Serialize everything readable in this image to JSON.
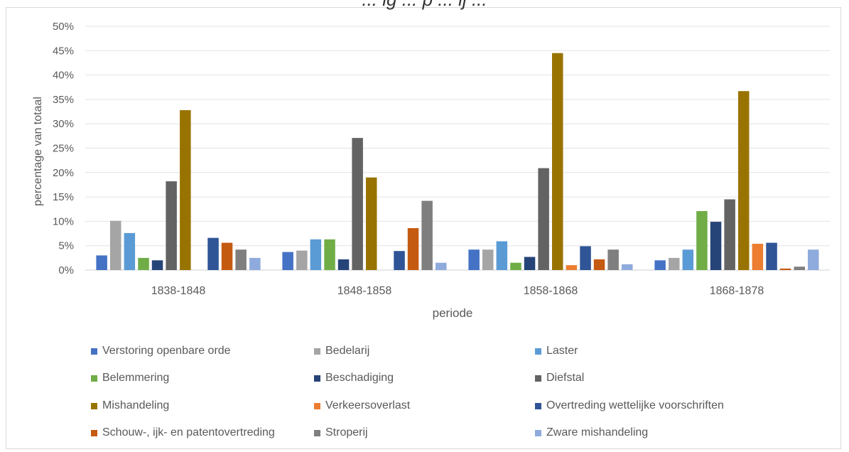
{
  "chart_data": {
    "type": "bar",
    "title": "... ig ... p ... ij ...",
    "xlabel": "periode",
    "ylabel": "percentage van totaal",
    "ylim": [
      0,
      50
    ],
    "yticks": [
      "0%",
      "5%",
      "10%",
      "15%",
      "20%",
      "25%",
      "30%",
      "35%",
      "40%",
      "45%",
      "50%"
    ],
    "categories": [
      "1838-1848",
      "1848-1858",
      "1858-1868",
      "1868-1878"
    ],
    "grid": true,
    "legend_position": "bottom",
    "series": [
      {
        "name": "Verstoring openbare orde",
        "color": "#4472c4",
        "values": [
          3.0,
          3.7,
          4.2,
          2.0
        ]
      },
      {
        "name": "Bedelarij",
        "color": "#a5a5a5",
        "values": [
          10.1,
          4.0,
          4.2,
          2.5
        ]
      },
      {
        "name": "Laster",
        "color": "#5b9bd5",
        "values": [
          7.6,
          6.3,
          5.9,
          4.2
        ]
      },
      {
        "name": "Belemmering",
        "color": "#70ad47",
        "values": [
          2.5,
          6.3,
          1.5,
          12.1
        ]
      },
      {
        "name": "Beschadiging",
        "color": "#264478",
        "values": [
          2.0,
          2.2,
          2.7,
          9.9
        ]
      },
      {
        "name": "Diefstal",
        "color": "#636363",
        "values": [
          18.2,
          27.1,
          20.9,
          14.5
        ]
      },
      {
        "name": "Mishandeling",
        "color": "#997300",
        "values": [
          32.8,
          19.0,
          44.5,
          36.7
        ]
      },
      {
        "name": "Verkeersoverlast",
        "color": "#ed7d31",
        "values": [
          0,
          0,
          1.0,
          5.4
        ]
      },
      {
        "name": "Overtreding wettelijke voorschriften",
        "color": "#2f5597",
        "values": [
          6.6,
          3.9,
          4.9,
          5.6
        ]
      },
      {
        "name": "Schouw-, ijk- en patentovertreding",
        "color": "#c55a11",
        "values": [
          5.6,
          8.6,
          2.2,
          0.3
        ]
      },
      {
        "name": "Stroperij",
        "color": "#7f7f7f",
        "values": [
          4.2,
          14.2,
          4.2,
          0.7
        ]
      },
      {
        "name": "Zware mishandeling",
        "color": "#8faadc",
        "values": [
          2.5,
          1.5,
          1.2,
          4.2
        ]
      }
    ]
  }
}
